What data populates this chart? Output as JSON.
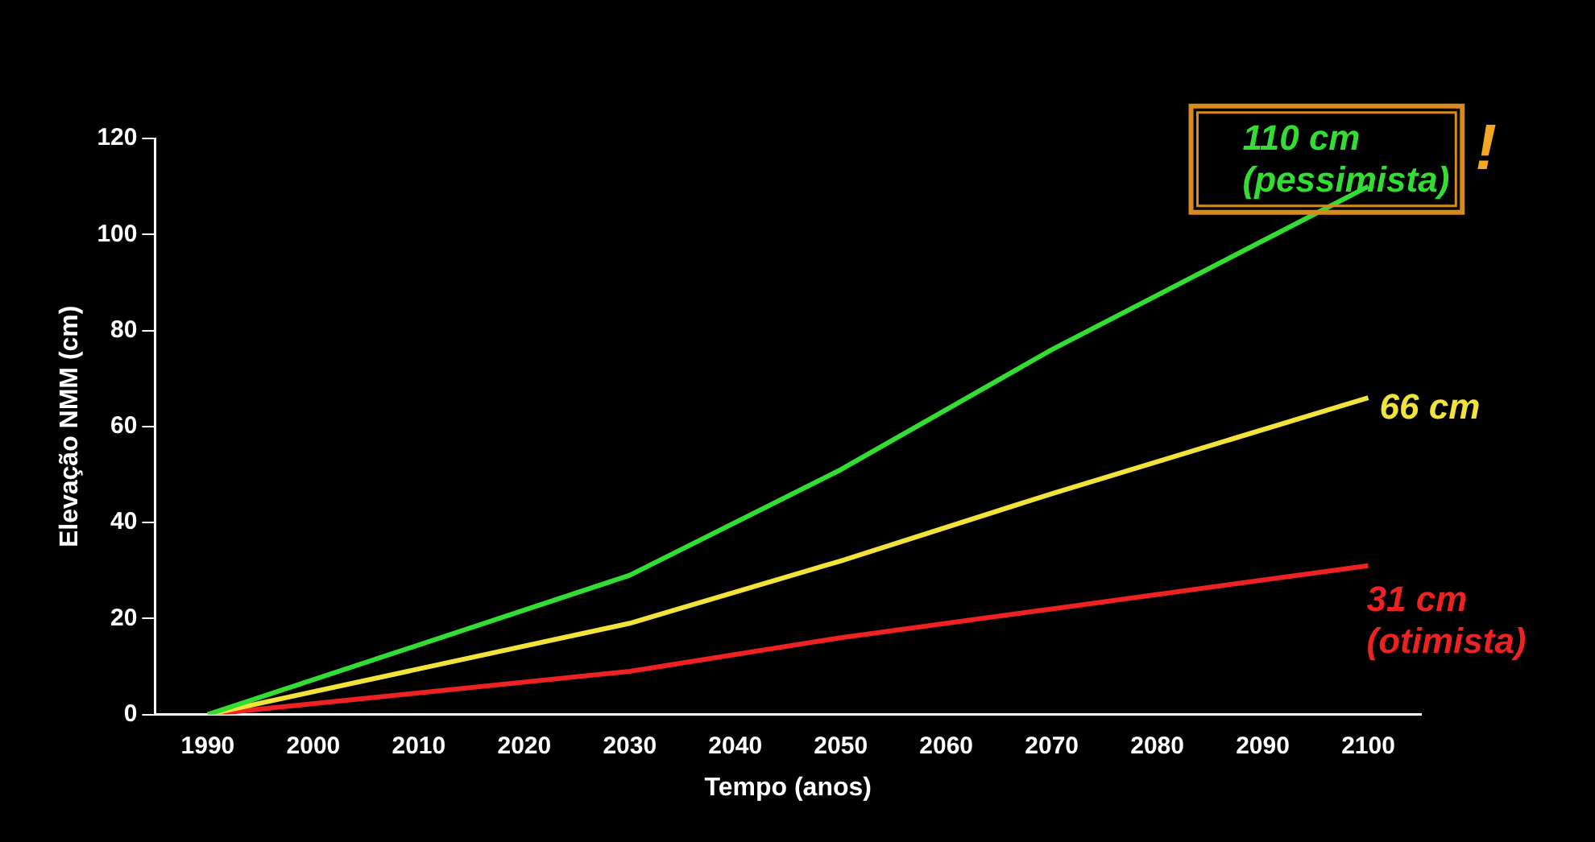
{
  "chart_data": {
    "type": "line",
    "xlabel": "Tempo (anos)",
    "ylabel": "Elevação NMM (cm)",
    "xlim": [
      1985,
      2105
    ],
    "xticks": [
      1990,
      2000,
      2010,
      2020,
      2030,
      2040,
      2050,
      2060,
      2070,
      2080,
      2090,
      2100
    ],
    "ylim": [
      0,
      120
    ],
    "yticks": [
      0,
      20,
      40,
      60,
      80,
      100,
      120
    ],
    "grid": false,
    "legend": false,
    "marker": "none",
    "line_style": "solid",
    "series": [
      {
        "name": "110 cm (pessimista)",
        "color": "#33dd33",
        "x": [
          1990,
          2030,
          2050,
          2070,
          2100
        ],
        "values": [
          0,
          29,
          51,
          76,
          110
        ]
      },
      {
        "name": "66 cm",
        "color": "#f2e33a",
        "x": [
          1990,
          2030,
          2050,
          2070,
          2100
        ],
        "values": [
          0,
          19,
          32,
          46,
          66
        ]
      },
      {
        "name": "31 cm (otimista)",
        "color": "#ee2222",
        "x": [
          1990,
          2030,
          2050,
          2070,
          2100
        ],
        "values": [
          0,
          9,
          16,
          22,
          31
        ]
      }
    ],
    "annotations": [
      "!"
    ]
  }
}
